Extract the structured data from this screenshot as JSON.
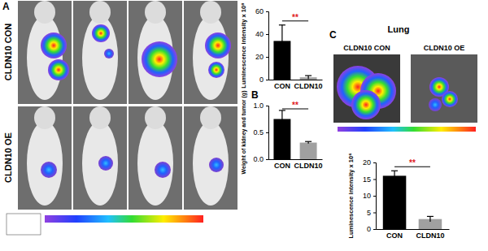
{
  "figure": {
    "panels": [
      "A",
      "B",
      "C"
    ],
    "rows": [
      "CLDN10 CON",
      "CLDN10 OE"
    ],
    "lung": {
      "title": "Lung",
      "columns": [
        "CLDN10 CON",
        "CLDN10 OE"
      ]
    }
  },
  "chart_data": [
    {
      "type": "bar",
      "y_label": "Luminescence intensity x 10⁸",
      "categories": [
        "CON",
        "CLDN10"
      ],
      "values": [
        34,
        2
      ],
      "errors": [
        14,
        1.5
      ],
      "colors": [
        "#000000",
        "#a0a0a0"
      ],
      "ylim": [
        0,
        60
      ],
      "yticks": [
        0,
        20,
        40,
        60
      ],
      "annotation": "**"
    },
    {
      "type": "bar",
      "y_label": "Weight of kidney and tumor (g)",
      "categories": [
        "CON",
        "CLDN10"
      ],
      "values": [
        0.75,
        0.31
      ],
      "errors": [
        0.16,
        0.02
      ],
      "colors": [
        "#000000",
        "#a0a0a0"
      ],
      "ylim": [
        0,
        1.0
      ],
      "yticks": [
        {
          "value": 0,
          "label": "0.0"
        },
        {
          "value": 0.5,
          "label": "0.5"
        },
        {
          "value": 1.0,
          "label": "1.0"
        }
      ],
      "annotation": "**"
    },
    {
      "type": "bar",
      "y_label": "Luminescence intensity x 10⁶",
      "categories": [
        "CON",
        "CLDN10"
      ],
      "values": [
        16,
        3
      ],
      "errors": [
        1.5,
        0.8
      ],
      "colors": [
        "#000000",
        "#a0a0a0"
      ],
      "ylim": [
        0,
        20
      ],
      "yticks": [
        0,
        5,
        10,
        15,
        20
      ],
      "annotation": "**"
    }
  ]
}
